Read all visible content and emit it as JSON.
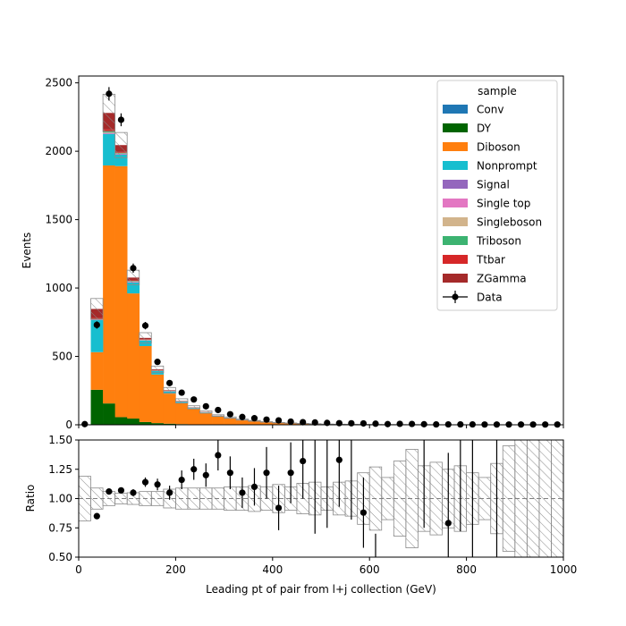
{
  "chart_data": {
    "type": "bar",
    "stacked": true,
    "xlabel": "Leading pt of pair from l+j collection (GeV)",
    "xlim": [
      0,
      1000
    ],
    "x_ticks": [
      "0",
      "200",
      "400",
      "600",
      "800",
      "1000"
    ],
    "bin_width": 25,
    "bin_edges_start": 0,
    "main_panel": {
      "ylabel": "Events",
      "ylim": [
        0,
        2550
      ],
      "y_ticks": [
        "0",
        "500",
        "1000",
        "1500",
        "2000",
        "2500"
      ],
      "legend": {
        "title": "sample",
        "placement": "top-right"
      },
      "series": [
        {
          "name": "Conv",
          "color": "#1f77b4",
          "values": [
            0,
            1,
            1,
            1,
            0.5,
            0.3,
            0.2,
            0,
            0,
            0,
            0,
            0,
            0,
            0,
            0,
            0,
            0,
            0,
            0,
            0,
            0,
            0,
            0,
            0,
            0,
            0,
            0,
            0,
            0,
            0,
            0,
            0,
            0,
            0,
            0,
            0,
            0,
            0,
            0,
            0
          ]
        },
        {
          "name": "DY",
          "color": "#006400",
          "values": [
            0,
            255,
            155,
            55,
            45,
            20,
            12,
            8,
            5,
            3,
            2,
            1,
            1,
            0.5,
            0.5,
            0,
            0,
            0,
            0,
            0,
            0,
            0,
            0,
            0,
            0,
            0,
            0,
            0,
            0,
            0,
            0,
            0,
            0,
            0,
            0,
            0,
            0,
            0,
            0,
            0
          ]
        },
        {
          "name": "Diboson",
          "color": "#ff7f0e",
          "values": [
            0,
            275,
            1740,
            1835,
            915,
            555,
            355,
            220,
            155,
            115,
            85,
            62,
            48,
            35,
            27,
            20,
            15,
            12,
            9,
            7,
            5,
            4,
            3,
            2.5,
            2,
            1.6,
            1.3,
            1,
            0.8,
            0.6,
            0.5,
            0.4,
            0.3,
            0.2,
            0.2,
            0.1,
            0.1,
            0.1,
            0.1,
            0.1
          ]
        },
        {
          "name": "Nonprompt",
          "color": "#17becf",
          "values": [
            0,
            235,
            230,
            85,
            80,
            40,
            25,
            15,
            8,
            5,
            3,
            2,
            1.5,
            1,
            0.5,
            0.3,
            0,
            0,
            0,
            0,
            0,
            0,
            0,
            0,
            0,
            0,
            0,
            0,
            0,
            0,
            0,
            0,
            0,
            0,
            0,
            0,
            0,
            0,
            0,
            0
          ]
        },
        {
          "name": "Signal",
          "color": "#9467bd",
          "values": [
            0,
            1,
            2,
            2,
            2,
            1,
            1,
            1,
            0.5,
            0.5,
            0.3,
            0.2,
            0.2,
            0.1,
            0.1,
            0,
            0,
            0,
            0,
            0,
            0,
            0,
            0,
            0,
            0,
            0,
            0,
            0,
            0,
            0,
            0,
            0,
            0,
            0,
            0,
            0,
            0,
            0,
            0,
            0
          ]
        },
        {
          "name": "Single top",
          "color": "#e377c2",
          "values": [
            0,
            3,
            5,
            4,
            3,
            2,
            1,
            1,
            0.5,
            0.5,
            0.3,
            0.2,
            0.1,
            0.1,
            0,
            0,
            0,
            0,
            0,
            0,
            0,
            0,
            0,
            0,
            0,
            0,
            0,
            0,
            0,
            0,
            0,
            0,
            0,
            0,
            0,
            0,
            0,
            0,
            0,
            0
          ]
        },
        {
          "name": "Singleboson",
          "color": "#d2b48c",
          "values": [
            0,
            2,
            3,
            2,
            2,
            1,
            1,
            0.5,
            0.5,
            0.3,
            0.2,
            0.1,
            0.1,
            0,
            0,
            0,
            0,
            0,
            0,
            0,
            0,
            0,
            0,
            0,
            0,
            0,
            0,
            0,
            0,
            0,
            0,
            0,
            0,
            0,
            0,
            0,
            0,
            0,
            0,
            0
          ]
        },
        {
          "name": "Triboson",
          "color": "#3cb371",
          "values": [
            0,
            3,
            12,
            5,
            4,
            3,
            2,
            2,
            1,
            1,
            0.8,
            0.6,
            0.5,
            0.4,
            0.3,
            0.2,
            0.2,
            0.1,
            0.1,
            0.1,
            0,
            0,
            0,
            0,
            0,
            0,
            0,
            0,
            0,
            0,
            0,
            0,
            0,
            0,
            0,
            0,
            0,
            0,
            0,
            0
          ]
        },
        {
          "name": "Ttbar",
          "color": "#d62728",
          "values": [
            0,
            7,
            12,
            6,
            5,
            3,
            2,
            1,
            1,
            0.5,
            0.3,
            0.2,
            0.1,
            0.1,
            0,
            0,
            0,
            0,
            0,
            0,
            0,
            0,
            0,
            0,
            0,
            0,
            0,
            0,
            0,
            0,
            0,
            0,
            0,
            0,
            0,
            0,
            0,
            0,
            0,
            0
          ]
        },
        {
          "name": "ZGamma",
          "color": "#a52a2a",
          "values": [
            0,
            65,
            120,
            50,
            20,
            10,
            6,
            4,
            3,
            2,
            1.5,
            1,
            0.8,
            0.6,
            0.4,
            0.3,
            0.2,
            0.1,
            0.1,
            0.1,
            0,
            0,
            0,
            0,
            0,
            0,
            0,
            0,
            0,
            0,
            0,
            0,
            0,
            0,
            0,
            0,
            0,
            0,
            0,
            0
          ]
        }
      ],
      "mc_uncertainty_rel": [
        0.19,
        0.09,
        0.06,
        0.045,
        0.05,
        0.06,
        0.06,
        0.08,
        0.09,
        0.09,
        0.09,
        0.09,
        0.1,
        0.1,
        0.11,
        0.1,
        0.12,
        0.1,
        0.13,
        0.14,
        0.1,
        0.14,
        0.15,
        0.22,
        0.27,
        0.18,
        0.32,
        0.42,
        0.28,
        0.31,
        0.25,
        0.28,
        0.22,
        0.18,
        0.3,
        0.45,
        0.55,
        0.7,
        0.8,
        0.85
      ],
      "data": {
        "name": "Data",
        "y": [
          5,
          730,
          2420,
          2230,
          1145,
          725,
          460,
          305,
          235,
          185,
          135,
          108,
          77,
          57,
          48,
          38,
          32,
          23,
          19,
          17,
          14,
          12,
          11,
          10,
          8,
          5,
          7,
          6,
          4,
          3,
          3,
          3,
          3,
          2,
          2,
          2,
          2,
          2,
          2,
          2
        ],
        "yerr": [
          2,
          27,
          49,
          47,
          34,
          27,
          21,
          17,
          15,
          14,
          12,
          10,
          9,
          8,
          7,
          6,
          6,
          5,
          4,
          4,
          4,
          3,
          3,
          3,
          3,
          2,
          3,
          2,
          2,
          2,
          2,
          2,
          2,
          1,
          1,
          1,
          1,
          1,
          1,
          1
        ]
      }
    },
    "ratio_panel": {
      "ylabel": "Ratio",
      "ylim": [
        0.5,
        1.5
      ],
      "y_ticks": [
        "0.50",
        "0.75",
        "1.00",
        "1.25",
        "1.50"
      ],
      "reference_line": 1.0,
      "ratio": [
        null,
        0.85,
        1.06,
        1.07,
        1.05,
        1.14,
        1.12,
        1.05,
        1.16,
        1.25,
        1.2,
        1.37,
        1.22,
        1.05,
        1.1,
        1.22,
        0.92,
        1.22,
        1.32,
        null,
        null,
        1.33,
        null,
        0.88,
        null,
        null,
        null,
        null,
        null,
        null,
        0.79,
        null,
        null,
        null,
        null,
        null,
        null,
        null,
        null,
        null
      ],
      "ratio_err": [
        null,
        0,
        0.025,
        0.025,
        0.03,
        0.04,
        0.05,
        0.06,
        0.08,
        0.09,
        0.1,
        0.13,
        0.14,
        0.13,
        0.16,
        0.22,
        0.19,
        0.26,
        0.32,
        0.35,
        0.4,
        0.4,
        0.4,
        0.3,
        0.3,
        null,
        null,
        null,
        null,
        0.4,
        0.6,
        0.7,
        0.7,
        null,
        null,
        null,
        null,
        null,
        null,
        null
      ],
      "stray_error_bars": [
        {
          "bin": 19,
          "low": 0.7,
          "high": 1.5
        },
        {
          "bin": 20,
          "low": 0.75,
          "high": 1.5
        },
        {
          "bin": 22,
          "low": 0.82,
          "high": 1.5
        },
        {
          "bin": 24,
          "low": 0.5,
          "high": 0.7
        },
        {
          "bin": 28,
          "low": 0.75,
          "high": 1.5
        },
        {
          "bin": 31,
          "low": 0.72,
          "high": 1.5
        },
        {
          "bin": 32,
          "low": 0.5,
          "high": 1.5
        },
        {
          "bin": 34,
          "low": 0.5,
          "high": 1.5
        }
      ]
    }
  }
}
